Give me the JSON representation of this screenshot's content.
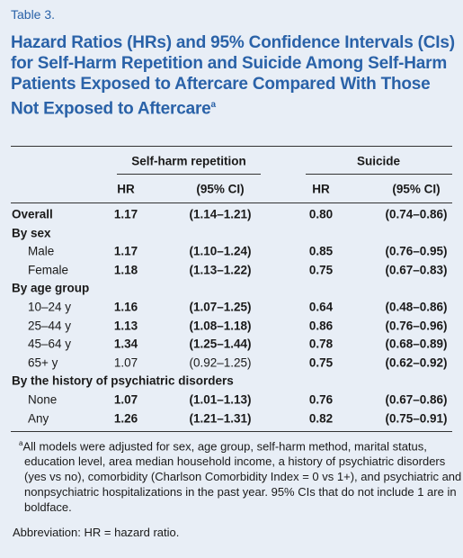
{
  "label": "Table 3.",
  "title": "Hazard Ratios (HRs) and 95% Confidence Intervals (CIs) for Self-Harm Repetition and Suicide Among Self-Harm Patients Exposed to Aftercare Compared With Those Not Exposed to Aftercare",
  "title_note": "a",
  "table": {
    "groups": [
      "Self-harm repetition",
      "Suicide"
    ],
    "columns": [
      "HR",
      "(95% CI)",
      "HR",
      "(95% CI)"
    ],
    "rows": [
      {
        "label": "Overall",
        "section": true,
        "cells": [
          "1.17",
          "(1.14–1.21)",
          "0.80",
          "(0.74–0.86)"
        ],
        "bold": [
          true,
          true,
          true,
          true
        ]
      },
      {
        "label": "By sex",
        "section": true
      },
      {
        "label": "Male",
        "cells": [
          "1.17",
          "(1.10–1.24)",
          "0.85",
          "(0.76–0.95)"
        ],
        "bold": [
          true,
          true,
          true,
          true
        ]
      },
      {
        "label": "Female",
        "cells": [
          "1.18",
          "(1.13–1.22)",
          "0.75",
          "(0.67–0.83)"
        ],
        "bold": [
          true,
          true,
          true,
          true
        ]
      },
      {
        "label": "By age group",
        "section": true
      },
      {
        "label": "10–24 y",
        "cells": [
          "1.16",
          "(1.07–1.25)",
          "0.64",
          "(0.48–0.86)"
        ],
        "bold": [
          true,
          true,
          true,
          true
        ]
      },
      {
        "label": "25–44 y",
        "cells": [
          "1.13",
          "(1.08–1.18)",
          "0.86",
          "(0.76–0.96)"
        ],
        "bold": [
          true,
          true,
          true,
          true
        ]
      },
      {
        "label": "45–64 y",
        "cells": [
          "1.34",
          "(1.25–1.44)",
          "0.78",
          "(0.68–0.89)"
        ],
        "bold": [
          true,
          true,
          true,
          true
        ]
      },
      {
        "label": "65+ y",
        "cells": [
          "1.07",
          "(0.92–1.25)",
          "0.75",
          "(0.62–0.92)"
        ],
        "bold": [
          false,
          false,
          true,
          true
        ]
      },
      {
        "label": "By the history of psychiatric disorders",
        "section": true
      },
      {
        "label": "None",
        "cells": [
          "1.07",
          "(1.01–1.13)",
          "0.76",
          "(0.67–0.86)"
        ],
        "bold": [
          true,
          true,
          true,
          true
        ]
      },
      {
        "label": "Any",
        "cells": [
          "1.26",
          "(1.21–1.31)",
          "0.82",
          "(0.75–0.91)"
        ],
        "bold": [
          true,
          true,
          true,
          true
        ]
      }
    ]
  },
  "footnote": {
    "marker": "a",
    "text": "All models were adjusted for sex, age group, self-harm method, marital status, education level, area median household income, a history of psychiatric disorders (yes vs no), comorbidity (Charlson Comorbidity Index = 0 vs 1+), and psychiatric and nonpsychiatric hospitalizations in the past year. 95% CIs that do not include 1 are in boldface."
  },
  "abbreviation": "Abbreviation: HR = hazard ratio."
}
